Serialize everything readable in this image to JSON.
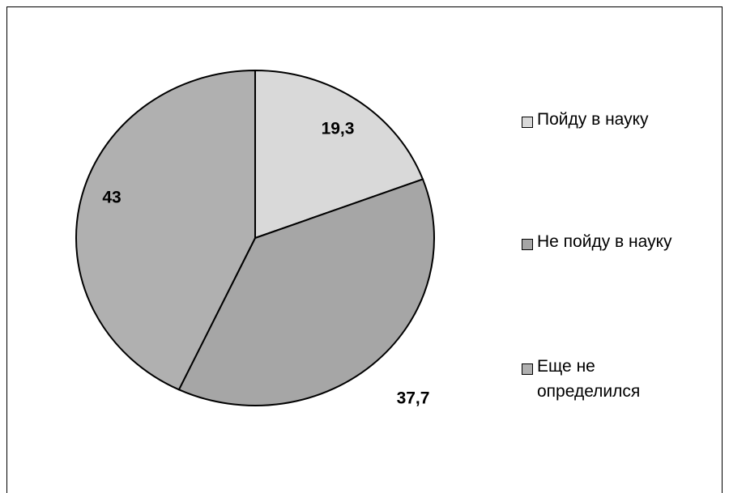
{
  "chart_data": {
    "type": "pie",
    "categories": [
      "Пойду в науку",
      "Не пойду в науку",
      "Еще не определился"
    ],
    "values": [
      19.3,
      37.7,
      43
    ],
    "value_labels": [
      "19,3",
      "37,7",
      "43"
    ],
    "colors": [
      "#d9d9d9",
      "#a6a6a6",
      "#b0b0b0"
    ]
  }
}
